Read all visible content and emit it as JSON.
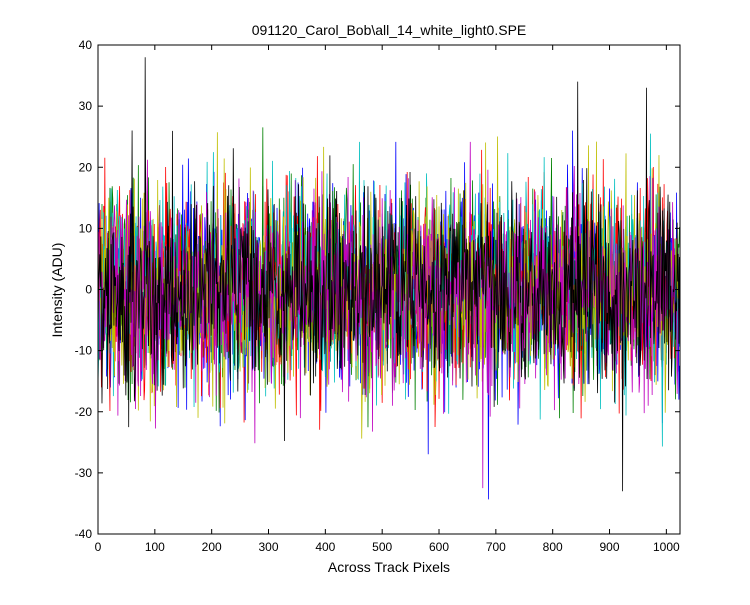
{
  "chart_data": {
    "type": "line",
    "title": "091120_Carol_Bob\\all_14_white_light0.SPE",
    "xlabel": "Across Track Pixels",
    "ylabel": "Intensity (ADU)",
    "xlim": [
      0,
      1024
    ],
    "ylim": [
      -40,
      40
    ],
    "xticks": [
      0,
      100,
      200,
      300,
      400,
      500,
      600,
      700,
      800,
      900,
      1000
    ],
    "yticks": [
      -40,
      -30,
      -20,
      -10,
      0,
      10,
      20,
      30,
      40
    ],
    "grid": false,
    "legend": "none",
    "x_points": 1024,
    "series_colors": [
      "#0000ff",
      "#008000",
      "#ff0000",
      "#00bfbf",
      "#bfbf00",
      "#bf00bf",
      "#000000"
    ],
    "noise_std": 8,
    "noise_mean": 0,
    "seed": 14,
    "annotated_extremes": [
      {
        "x": 83,
        "y": 38
      },
      {
        "x": 844,
        "y": 34
      },
      {
        "x": 965,
        "y": 33
      },
      {
        "x": 923,
        "y": -33
      }
    ]
  }
}
